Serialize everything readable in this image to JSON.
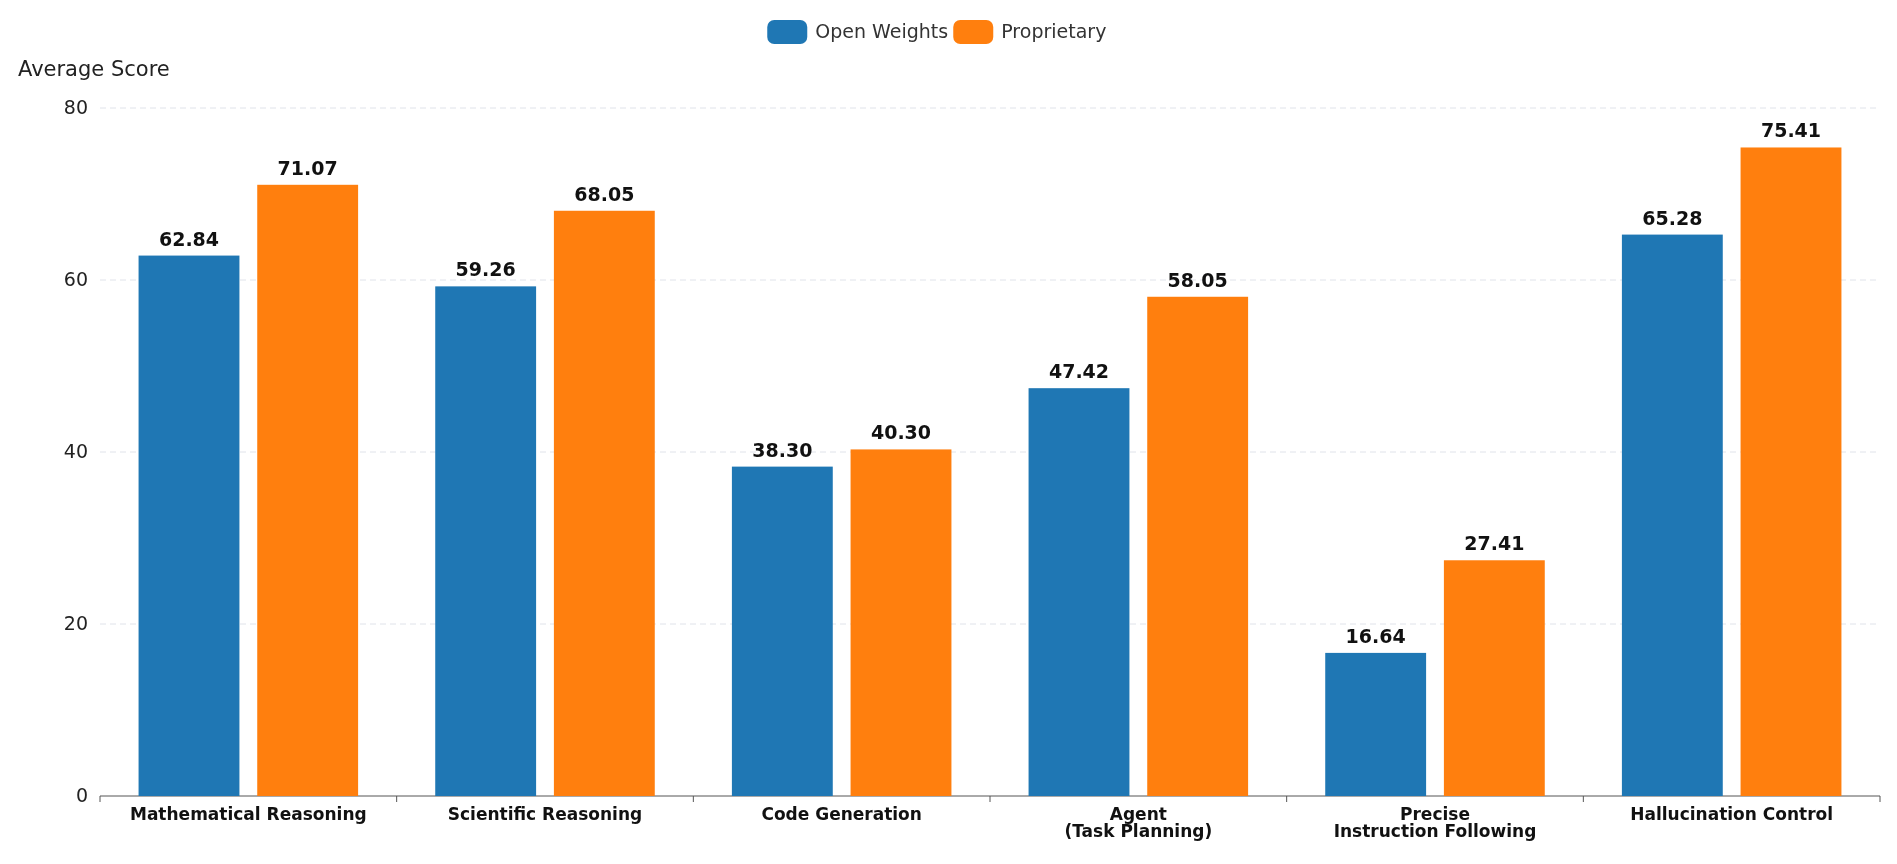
{
  "chart_data": {
    "type": "bar",
    "ylabel": "Average Score",
    "categories": [
      "Mathematical Reasoning",
      "Scientific Reasoning",
      "Code Generation",
      "Agent\n(Task Planning)",
      "Precise\nInstruction Following",
      "Hallucination Control"
    ],
    "series": [
      {
        "name": "Open Weights",
        "color": "#1f77b4",
        "values": [
          62.84,
          59.26,
          38.3,
          47.42,
          16.64,
          65.28
        ]
      },
      {
        "name": "Proprietary",
        "color": "#ff7f0e",
        "values": [
          71.07,
          68.05,
          40.3,
          58.05,
          27.41,
          75.41
        ]
      }
    ],
    "value_labels": [
      [
        "62.84",
        "59.26",
        "38.30",
        "47.42",
        "16.64",
        "65.28"
      ],
      [
        "71.07",
        "68.05",
        "40.30",
        "58.05",
        "27.41",
        "75.41"
      ]
    ],
    "ylim": [
      0,
      80
    ],
    "yticks": [
      0,
      20,
      40,
      60,
      80
    ],
    "grid": "y",
    "legend": "top"
  }
}
